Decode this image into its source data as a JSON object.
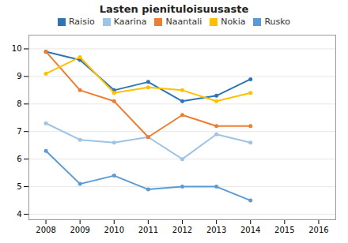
{
  "chart_data": {
    "type": "line",
    "title": "Lasten pienituloisuusaste",
    "x": [
      2008,
      2009,
      2010,
      2011,
      2012,
      2013,
      2014
    ],
    "series": [
      {
        "name": "Raisio",
        "color": "#2e75b6",
        "marker": "circle",
        "values": [
          9.9,
          9.6,
          8.5,
          8.8,
          8.1,
          8.3,
          8.9
        ]
      },
      {
        "name": "Kaarina",
        "color": "#9dc3e6",
        "marker": "circle",
        "values": [
          7.3,
          6.7,
          6.6,
          6.8,
          6.0,
          6.9,
          6.6
        ]
      },
      {
        "name": "Naantali",
        "color": "#ed7d31",
        "marker": "circle",
        "values": [
          9.9,
          8.5,
          8.1,
          6.8,
          7.6,
          7.2,
          7.2
        ]
      },
      {
        "name": "Nokia",
        "color": "#ffc000",
        "marker": "circle",
        "values": [
          9.1,
          9.7,
          8.4,
          8.6,
          8.5,
          8.1,
          8.4
        ]
      },
      {
        "name": "Rusko",
        "color": "#5b9bd5",
        "marker": "circle",
        "values": [
          6.3,
          5.1,
          5.4,
          4.9,
          5.0,
          5.0,
          4.5
        ]
      }
    ],
    "xlim": [
      2007.5,
      2016.5
    ],
    "xticks": [
      2008,
      2009,
      2010,
      2011,
      2012,
      2013,
      2014,
      2015,
      2016
    ],
    "ylim": [
      3.8,
      10.5
    ],
    "yticks": [
      4,
      5,
      6,
      7,
      8,
      9,
      10
    ],
    "grid": true,
    "legend": "top"
  }
}
